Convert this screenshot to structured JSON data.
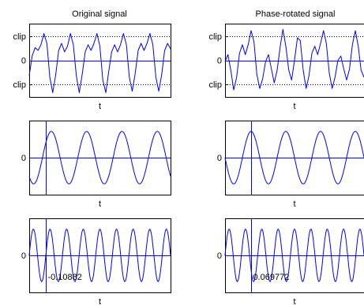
{
  "figure": {
    "columns": [
      {
        "title": "Original signal"
      },
      {
        "title": "Phase-rotated signal"
      }
    ]
  },
  "chart_data": [
    {
      "type": "line",
      "title": "Original signal",
      "xlabel": "t",
      "yticks": [
        "clip",
        "0",
        "clip"
      ],
      "grid": "dotted lines at clip levels",
      "x": [
        0,
        0.25,
        0.5,
        0.75,
        1,
        1.25,
        1.5,
        1.75,
        2,
        2.25,
        2.5,
        2.75,
        3,
        3.25,
        3.5,
        3.75,
        4,
        4.25,
        4.5,
        4.75,
        5,
        5.25,
        5.5,
        5.75,
        6,
        6.25,
        6.5,
        6.75,
        7,
        7.25,
        7.5,
        7.75,
        8,
        8.25,
        8.5,
        8.75,
        9,
        9.25,
        9.5,
        9.75,
        10,
        10.25,
        10.5,
        10.75,
        11,
        11.25,
        11.5,
        11.75,
        12
      ],
      "series": [
        {
          "color": "#0000ff",
          "values": [
            -0.55,
            0.15,
            0.45,
            0.35,
            0.55,
            0.95,
            0.6,
            -0.6,
            -1.15,
            -0.5,
            0.35,
            0.6,
            0.3,
            0.5,
            0.95,
            0.55,
            -0.55,
            -1.15,
            -0.5,
            0.3,
            0.55,
            0.35,
            0.6,
            0.95,
            0.5,
            -0.7,
            -1.15,
            -0.4,
            0.3,
            0.55,
            0.3,
            0.55,
            0.95,
            0.55,
            -0.6,
            -1.1,
            -0.45,
            0.35,
            0.6,
            0.35,
            0.6,
            0.95,
            0.55,
            -0.6,
            -1.1,
            -0.5,
            0.35,
            0.6,
            0.4
          ]
        }
      ],
      "hlines": [
        0
      ],
      "ylim": [
        -1.3,
        1.3
      ]
    },
    {
      "type": "line",
      "title": "Phase-rotated signal",
      "xlabel": "t",
      "yticks": [
        "clip",
        "0",
        "clip"
      ],
      "grid": "dotted lines at clip levels",
      "x": [
        0,
        0.25,
        0.5,
        0.75,
        1,
        1.25,
        1.5,
        1.75,
        2,
        2.25,
        2.5,
        2.75,
        3,
        3.25,
        3.5,
        3.75,
        4,
        4.25,
        4.5,
        4.75,
        5,
        5.25,
        5.5,
        5.75,
        6,
        6.25,
        6.5,
        6.75,
        7,
        7.25,
        7.5,
        7.75,
        8,
        8.25,
        8.5,
        8.75,
        9,
        9.25,
        9.5,
        9.75,
        10,
        10.25,
        10.5,
        10.75,
        11,
        11.25,
        11.5,
        11.75,
        12
      ],
      "series": [
        {
          "color": "#0000ff",
          "values": [
            -0.05,
            0.2,
            -0.35,
            -1.05,
            -0.6,
            0.25,
            0.55,
            0.2,
            0.55,
            1.05,
            0.65,
            -0.5,
            -1.0,
            -0.65,
            -0.05,
            0.2,
            -0.3,
            -0.8,
            -0.35,
            0.45,
            1.1,
            0.5,
            -0.35,
            -0.7,
            0.0,
            0.8,
            0.7,
            -0.35,
            -1.0,
            -0.55,
            0.25,
            0.5,
            0.2,
            0.6,
            1.05,
            0.6,
            -0.45,
            -1.0,
            -0.6,
            0.0,
            0.15,
            -0.3,
            -0.7,
            -0.3,
            0.55,
            1.05,
            0.5,
            -0.35,
            -0.6
          ]
        }
      ],
      "hlines": [
        0
      ],
      "ylim": [
        -1.3,
        1.3
      ]
    },
    {
      "type": "line",
      "xlabel": "t",
      "yticks": [
        "0"
      ],
      "sinusoid": {
        "amplitude": 0.85,
        "cycles_in_view": 4,
        "phase_deg": 225
      },
      "vline_x": 0.12,
      "hlines": [
        0
      ],
      "ylim": [
        -1.2,
        1.2
      ]
    },
    {
      "type": "line",
      "xlabel": "t",
      "yticks": [
        "0"
      ],
      "sinusoid": {
        "amplitude": 0.85,
        "cycles_in_view": 4,
        "phase_deg": 180
      },
      "vline_x": 0.19,
      "hlines": [
        0
      ],
      "ylim": [
        -1.2,
        1.2
      ]
    },
    {
      "type": "line",
      "xlabel": "t",
      "yticks": [
        "0"
      ],
      "sinusoid": {
        "amplitude": 0.85,
        "cycles_in_view": 8.5,
        "phase_deg": 0
      },
      "vline_x": 0.12,
      "annotation": "-0.10882",
      "hlines": [
        0
      ],
      "ylim": [
        -1.2,
        1.2
      ]
    },
    {
      "type": "line",
      "xlabel": "t",
      "yticks": [
        "0"
      ],
      "sinusoid": {
        "amplitude": 0.85,
        "cycles_in_view": 8.5,
        "phase_deg": 0
      },
      "vline_x": 0.19,
      "annotation": "0.069772",
      "hlines": [
        0
      ],
      "ylim": [
        -1.2,
        1.2
      ]
    }
  ]
}
